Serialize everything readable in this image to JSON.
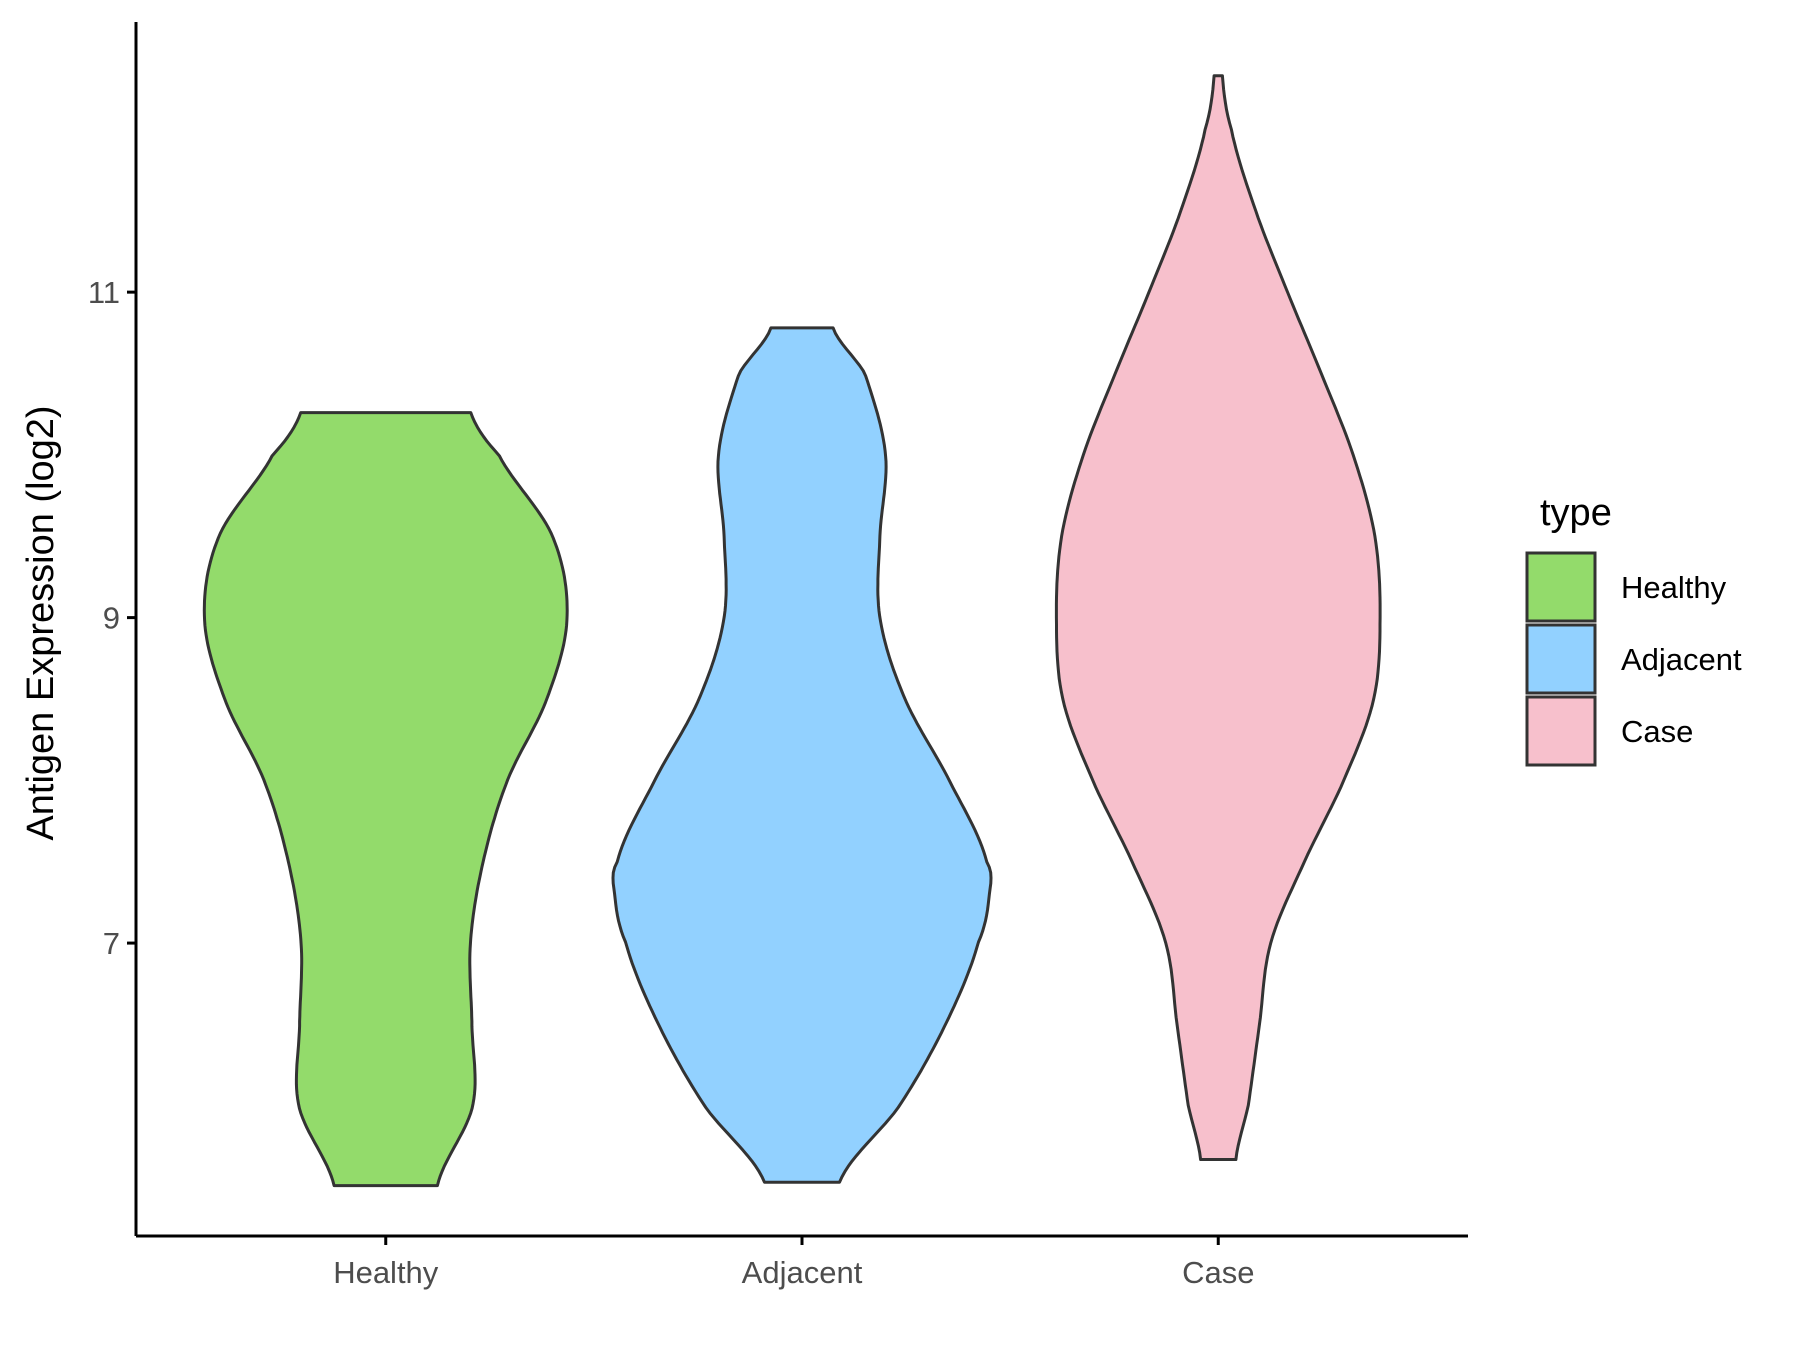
{
  "chart_data": {
    "type": "violin",
    "title": "",
    "xlabel": "",
    "ylabel": "Antigen Expression (log2)",
    "ylim": [
      5.2,
      12.66
    ],
    "yticks": [
      7,
      9,
      11
    ],
    "categories": [
      "Healthy",
      "Adjacent",
      "Case"
    ],
    "grid": false,
    "legend": {
      "title": "type",
      "position": "right",
      "entries": [
        "Healthy",
        "Adjacent",
        "Case"
      ]
    },
    "series": [
      {
        "category": "Healthy",
        "color": "#93DB6B",
        "min": 5.51,
        "max": 10.26,
        "profile": [
          [
            5.51,
            0.138
          ],
          [
            6.0,
            0.232
          ],
          [
            6.5,
            0.23
          ],
          [
            7.0,
            0.226
          ],
          [
            7.5,
            0.26
          ],
          [
            8.0,
            0.325
          ],
          [
            8.5,
            0.43
          ],
          [
            9.0,
            0.484
          ],
          [
            9.5,
            0.445
          ],
          [
            10.0,
            0.302
          ],
          [
            10.26,
            0.227
          ]
        ]
      },
      {
        "category": "Adjacent",
        "color": "#92D1FF",
        "min": 5.53,
        "max": 10.78,
        "profile": [
          [
            5.53,
            0.1
          ],
          [
            6.0,
            0.26
          ],
          [
            6.5,
            0.383
          ],
          [
            7.0,
            0.47
          ],
          [
            7.3,
            0.5
          ],
          [
            7.5,
            0.493
          ],
          [
            8.0,
            0.393
          ],
          [
            8.5,
            0.275
          ],
          [
            9.0,
            0.208
          ],
          [
            9.5,
            0.208
          ],
          [
            10.0,
            0.223
          ],
          [
            10.5,
            0.168
          ],
          [
            10.78,
            0.083
          ]
        ]
      },
      {
        "category": "Case",
        "color": "#F7C0CC",
        "min": 5.67,
        "max": 12.33,
        "profile": [
          [
            5.67,
            0.047
          ],
          [
            6.0,
            0.08
          ],
          [
            6.5,
            0.11
          ],
          [
            7.0,
            0.14
          ],
          [
            7.5,
            0.23
          ],
          [
            8.0,
            0.335
          ],
          [
            8.5,
            0.415
          ],
          [
            9.0,
            0.432
          ],
          [
            9.5,
            0.418
          ],
          [
            10.0,
            0.36
          ],
          [
            10.5,
            0.275
          ],
          [
            11.0,
            0.185
          ],
          [
            11.5,
            0.1
          ],
          [
            12.0,
            0.035
          ],
          [
            12.33,
            0.011
          ]
        ]
      }
    ]
  }
}
